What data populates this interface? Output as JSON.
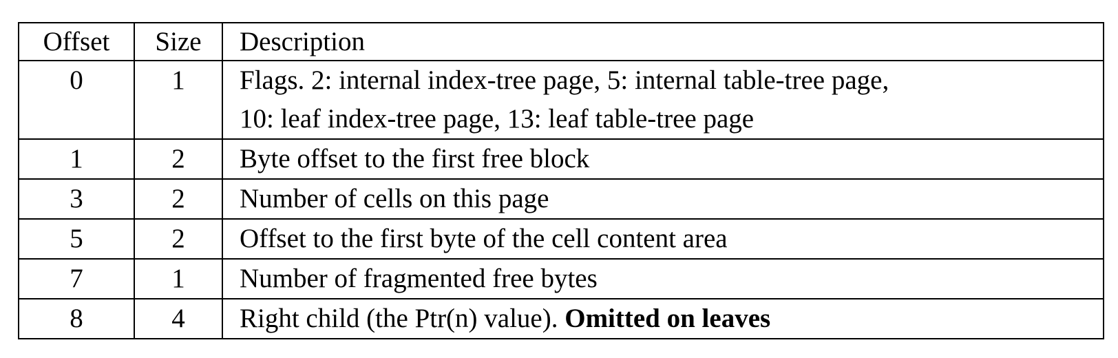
{
  "table": {
    "headers": {
      "offset": "Offset",
      "size": "Size",
      "description": "Description"
    },
    "rows": [
      {
        "offset": "0",
        "size": "1",
        "description_line1": "Flags. 2: internal index-tree page, 5: internal table-tree page,",
        "description_line2": "10: leaf index-tree page, 13: leaf table-tree page"
      },
      {
        "offset": "1",
        "size": "2",
        "description": "Byte offset to the first free block"
      },
      {
        "offset": "3",
        "size": "2",
        "description": "Number of cells on this page"
      },
      {
        "offset": "5",
        "size": "2",
        "description": "Offset to the first byte of the cell content area"
      },
      {
        "offset": "7",
        "size": "1",
        "description": "Number of fragmented free bytes"
      },
      {
        "offset": "8",
        "size": "4",
        "description": "Right child (the Ptr(n) value).",
        "description_bold": "Omitted on leaves"
      }
    ]
  }
}
